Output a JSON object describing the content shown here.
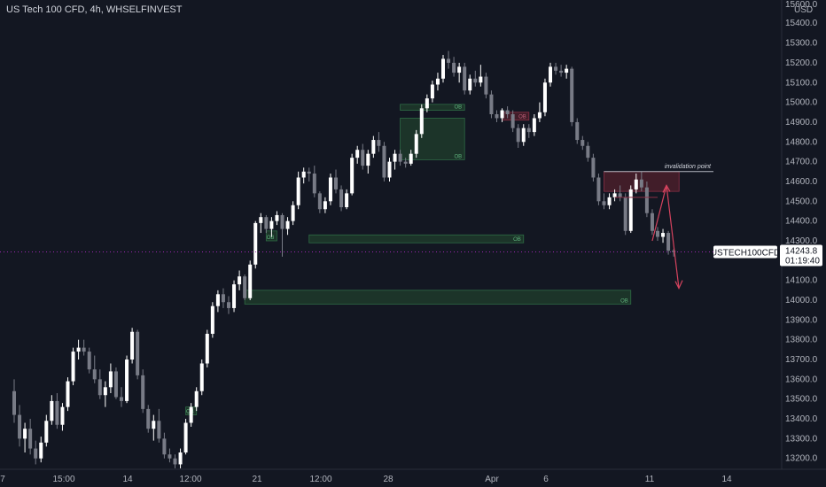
{
  "header": {
    "title": "US Tech 100 CFD, 4h, WHSELFINVEST"
  },
  "colors": {
    "background": "#131722",
    "bull_candle": "#ffffff",
    "bear_candle": "#787b86",
    "ob_bull_fill": "#1e3a2a",
    "ob_bull_border": "#2e6b45",
    "ob_bear_fill": "#4a1f2a",
    "ob_bear_border": "#8b2f45",
    "arrow": "#d5435e",
    "price_line": "#9c27b0"
  },
  "annotations": {
    "invalidation_label": "invalidation point",
    "ob_label": "OB"
  },
  "price_marker": {
    "symbol": "USTECH100CFD",
    "price": "14243.8",
    "countdown": "01:19:40"
  },
  "chart_data": {
    "type": "candlestick",
    "currency": "USD",
    "ylim": [
      13150,
      15600
    ],
    "y_ticks": [
      "15600.0",
      "15400.0",
      "15300.0",
      "15200.0",
      "15100.0",
      "15000.0",
      "14900.0",
      "14800.0",
      "14700.0",
      "14600.0",
      "14500.0",
      "14400.0",
      "14300.0",
      "14200.0",
      "14100.0",
      "14000.0",
      "13900.0",
      "13800.0",
      "13700.0",
      "13600.0",
      "13500.0",
      "13400.0",
      "13300.0",
      "13200.0"
    ],
    "x_ticks": [
      "7",
      "15:00",
      "14",
      "12:00",
      "21",
      "12:00",
      "28",
      "Apr",
      "6",
      "11",
      "14"
    ],
    "candles": [
      [
        13540,
        13600,
        13380,
        13420
      ],
      [
        13420,
        13470,
        13260,
        13300
      ],
      [
        13300,
        13380,
        13230,
        13350
      ],
      [
        13350,
        13400,
        13220,
        13250
      ],
      [
        13250,
        13290,
        13170,
        13200
      ],
      [
        13200,
        13310,
        13180,
        13280
      ],
      [
        13280,
        13420,
        13260,
        13390
      ],
      [
        13390,
        13520,
        13370,
        13490
      ],
      [
        13490,
        13530,
        13350,
        13370
      ],
      [
        13370,
        13480,
        13340,
        13460
      ],
      [
        13460,
        13610,
        13440,
        13590
      ],
      [
        13590,
        13760,
        13570,
        13740
      ],
      [
        13740,
        13800,
        13700,
        13760
      ],
      [
        13760,
        13800,
        13720,
        13740
      ],
      [
        13740,
        13760,
        13630,
        13650
      ],
      [
        13650,
        13720,
        13580,
        13600
      ],
      [
        13600,
        13650,
        13500,
        13520
      ],
      [
        13520,
        13590,
        13460,
        13560
      ],
      [
        13560,
        13680,
        13530,
        13640
      ],
      [
        13640,
        13660,
        13500,
        13510
      ],
      [
        13510,
        13560,
        13460,
        13490
      ],
      [
        13490,
        13720,
        13480,
        13700
      ],
      [
        13700,
        13860,
        13680,
        13840
      ],
      [
        13840,
        13850,
        13600,
        13620
      ],
      [
        13620,
        13650,
        13430,
        13450
      ],
      [
        13450,
        13470,
        13330,
        13350
      ],
      [
        13350,
        13420,
        13290,
        13390
      ],
      [
        13390,
        13450,
        13280,
        13300
      ],
      [
        13300,
        13330,
        13200,
        13220
      ],
      [
        13220,
        13250,
        13180,
        13200
      ],
      [
        13200,
        13220,
        13150,
        13170
      ],
      [
        13170,
        13250,
        13150,
        13230
      ],
      [
        13230,
        13400,
        13220,
        13380
      ],
      [
        13380,
        13480,
        13360,
        13460
      ],
      [
        13460,
        13560,
        13440,
        13540
      ],
      [
        13540,
        13700,
        13520,
        13680
      ],
      [
        13680,
        13850,
        13660,
        13830
      ],
      [
        13830,
        13990,
        13810,
        13970
      ],
      [
        13970,
        14050,
        13940,
        14030
      ],
      [
        14030,
        14060,
        13960,
        13990
      ],
      [
        13990,
        14020,
        13930,
        13960
      ],
      [
        13960,
        14100,
        13940,
        14080
      ],
      [
        14080,
        14150,
        14050,
        14120
      ],
      [
        14120,
        14130,
        14000,
        14010
      ],
      [
        14010,
        14200,
        14000,
        14180
      ],
      [
        14180,
        14400,
        14160,
        14390
      ],
      [
        14390,
        14440,
        14340,
        14420
      ],
      [
        14420,
        14430,
        14340,
        14360
      ],
      [
        14360,
        14420,
        14320,
        14400
      ],
      [
        14400,
        14450,
        14380,
        14430
      ],
      [
        14430,
        14440,
        14220,
        14360
      ],
      [
        14360,
        14420,
        14330,
        14400
      ],
      [
        14400,
        14500,
        14380,
        14480
      ],
      [
        14480,
        14650,
        14460,
        14620
      ],
      [
        14620,
        14670,
        14590,
        14650
      ],
      [
        14650,
        14670,
        14600,
        14640
      ],
      [
        14640,
        14680,
        14520,
        14540
      ],
      [
        14540,
        14550,
        14440,
        14460
      ],
      [
        14460,
        14520,
        14440,
        14500
      ],
      [
        14500,
        14640,
        14480,
        14620
      ],
      [
        14620,
        14660,
        14540,
        14560
      ],
      [
        14560,
        14580,
        14450,
        14470
      ],
      [
        14470,
        14560,
        14460,
        14540
      ],
      [
        14540,
        14740,
        14530,
        14720
      ],
      [
        14720,
        14780,
        14690,
        14760
      ],
      [
        14760,
        14790,
        14660,
        14680
      ],
      [
        14680,
        14760,
        14640,
        14740
      ],
      [
        14740,
        14830,
        14720,
        14810
      ],
      [
        14810,
        14850,
        14750,
        14780
      ],
      [
        14780,
        14800,
        14600,
        14620
      ],
      [
        14620,
        14720,
        14600,
        14700
      ],
      [
        14700,
        14760,
        14660,
        14740
      ],
      [
        14740,
        14760,
        14680,
        14700
      ],
      [
        14700,
        14720,
        14670,
        14690
      ],
      [
        14690,
        14760,
        14680,
        14740
      ],
      [
        14740,
        14860,
        14720,
        14840
      ],
      [
        14840,
        14990,
        14820,
        14970
      ],
      [
        14970,
        15040,
        14950,
        15020
      ],
      [
        15020,
        15110,
        15000,
        15090
      ],
      [
        15090,
        15150,
        15060,
        15120
      ],
      [
        15120,
        15240,
        15100,
        15220
      ],
      [
        15220,
        15260,
        15170,
        15200
      ],
      [
        15200,
        15230,
        15130,
        15150
      ],
      [
        15150,
        15200,
        15100,
        15180
      ],
      [
        15180,
        15200,
        15040,
        15060
      ],
      [
        15060,
        15140,
        15040,
        15120
      ],
      [
        15120,
        15160,
        15080,
        15100
      ],
      [
        15100,
        15190,
        15080,
        15130
      ],
      [
        15130,
        15150,
        15020,
        15040
      ],
      [
        15040,
        15060,
        14920,
        14940
      ],
      [
        14940,
        14960,
        14900,
        14920
      ],
      [
        14920,
        14970,
        14900,
        14960
      ],
      [
        14960,
        14980,
        14920,
        14940
      ],
      [
        14940,
        14960,
        14850,
        14870
      ],
      [
        14870,
        14890,
        14770,
        14800
      ],
      [
        14800,
        14890,
        14780,
        14870
      ],
      [
        14870,
        14890,
        14820,
        14850
      ],
      [
        14850,
        14940,
        14830,
        14920
      ],
      [
        14920,
        15000,
        14900,
        14950
      ],
      [
        14950,
        15120,
        14930,
        15100
      ],
      [
        15100,
        15200,
        15080,
        15180
      ],
      [
        15180,
        15200,
        15140,
        15160
      ],
      [
        15160,
        15190,
        15130,
        15150
      ],
      [
        15150,
        15190,
        15120,
        15170
      ],
      [
        15170,
        15180,
        14880,
        14900
      ],
      [
        14900,
        14920,
        14790,
        14810
      ],
      [
        14810,
        14830,
        14760,
        14780
      ],
      [
        14780,
        14800,
        14700,
        14720
      ],
      [
        14720,
        14740,
        14600,
        14620
      ],
      [
        14620,
        14640,
        14480,
        14500
      ],
      [
        14500,
        14540,
        14460,
        14480
      ],
      [
        14480,
        14540,
        14460,
        14520
      ],
      [
        14520,
        14560,
        14500,
        14540
      ],
      [
        14540,
        14580,
        14500,
        14520
      ],
      [
        14520,
        14540,
        14330,
        14350
      ],
      [
        14350,
        14580,
        14340,
        14560
      ],
      [
        14560,
        14640,
        14540,
        14610
      ],
      [
        14610,
        14650,
        14550,
        14570
      ],
      [
        14570,
        14600,
        14420,
        14440
      ],
      [
        14440,
        14460,
        14330,
        14350
      ],
      [
        14350,
        14370,
        14300,
        14320
      ],
      [
        14320,
        14360,
        14290,
        14340
      ],
      [
        14340,
        14350,
        14230,
        14250
      ],
      [
        14250,
        14260,
        14220,
        14243.8
      ]
    ],
    "order_blocks": [
      {
        "label": "OB",
        "type": "bull",
        "x_from": 55,
        "x_to": 95,
        "y_top": 14330,
        "y_bottom": 14290
      },
      {
        "label": "OB",
        "type": "bull",
        "x_from": 43,
        "x_to": 115,
        "y_top": 14050,
        "y_bottom": 13980
      },
      {
        "label": "OB",
        "type": "bull",
        "x_from": 72,
        "x_to": 84,
        "y_top": 14990,
        "y_bottom": 14960
      },
      {
        "label": "OB",
        "type": "bull",
        "x_from": 72,
        "x_to": 84,
        "y_top": 14920,
        "y_bottom": 14710
      },
      {
        "label": "OB",
        "type": "bull",
        "x_from": 32,
        "x_to": 34,
        "y_top": 13460,
        "y_bottom": 13420
      },
      {
        "label": "OB",
        "type": "bull",
        "x_from": 47,
        "x_to": 49,
        "y_top": 14350,
        "y_bottom": 14300
      },
      {
        "label": "OB",
        "type": "bear",
        "x_from": 91,
        "x_to": 96,
        "y_top": 14950,
        "y_bottom": 14910
      },
      {
        "label": "",
        "type": "bear",
        "x_from": 110,
        "x_to": 124,
        "y_top": 14650,
        "y_bottom": 14550
      }
    ]
  }
}
